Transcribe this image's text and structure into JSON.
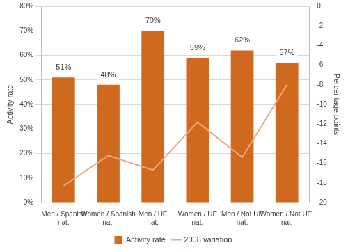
{
  "chart_data": {
    "type": "bar",
    "categories": [
      "Men / Spanish nat.",
      "Women / Spanish nat.",
      "Men / UE nat.",
      "Women / UE nat.",
      "Men / Not UE nat.",
      "Women / Not UE. nat."
    ],
    "series": [
      {
        "name": "Activity rate",
        "type": "bar",
        "color": "#D0691E",
        "values": [
          51,
          48,
          70,
          59,
          62,
          57
        ],
        "value_labels": [
          "51%",
          "48%",
          "70%",
          "59%",
          "62%",
          "57%"
        ],
        "data_labels": true
      },
      {
        "name": "2008 variation",
        "type": "line",
        "color": "#F4A582",
        "axis": "y2",
        "values": [
          -18.3,
          -15.2,
          -16.7,
          -11.8,
          -15.4,
          -8.0
        ]
      }
    ],
    "y_label": "Activity rate",
    "y2_label": "Percentage points",
    "ylim": [
      0,
      80
    ],
    "yticks": [
      {
        "value": 0,
        "label": "0%"
      },
      {
        "value": 10,
        "label": "10%"
      },
      {
        "value": 20,
        "label": "20%"
      },
      {
        "value": 30,
        "label": "30%"
      },
      {
        "value": 40,
        "label": "40%"
      },
      {
        "value": 50,
        "label": "50%"
      },
      {
        "value": 60,
        "label": "60%"
      },
      {
        "value": 70,
        "label": "70%"
      },
      {
        "value": 80,
        "label": "80%"
      }
    ],
    "y2lim": [
      -20,
      0
    ],
    "y2ticks": [
      0,
      -2,
      -4,
      -6,
      -8,
      -10,
      -12,
      -14,
      -16,
      -18,
      -20
    ],
    "grid": true,
    "legend": "bottom"
  }
}
